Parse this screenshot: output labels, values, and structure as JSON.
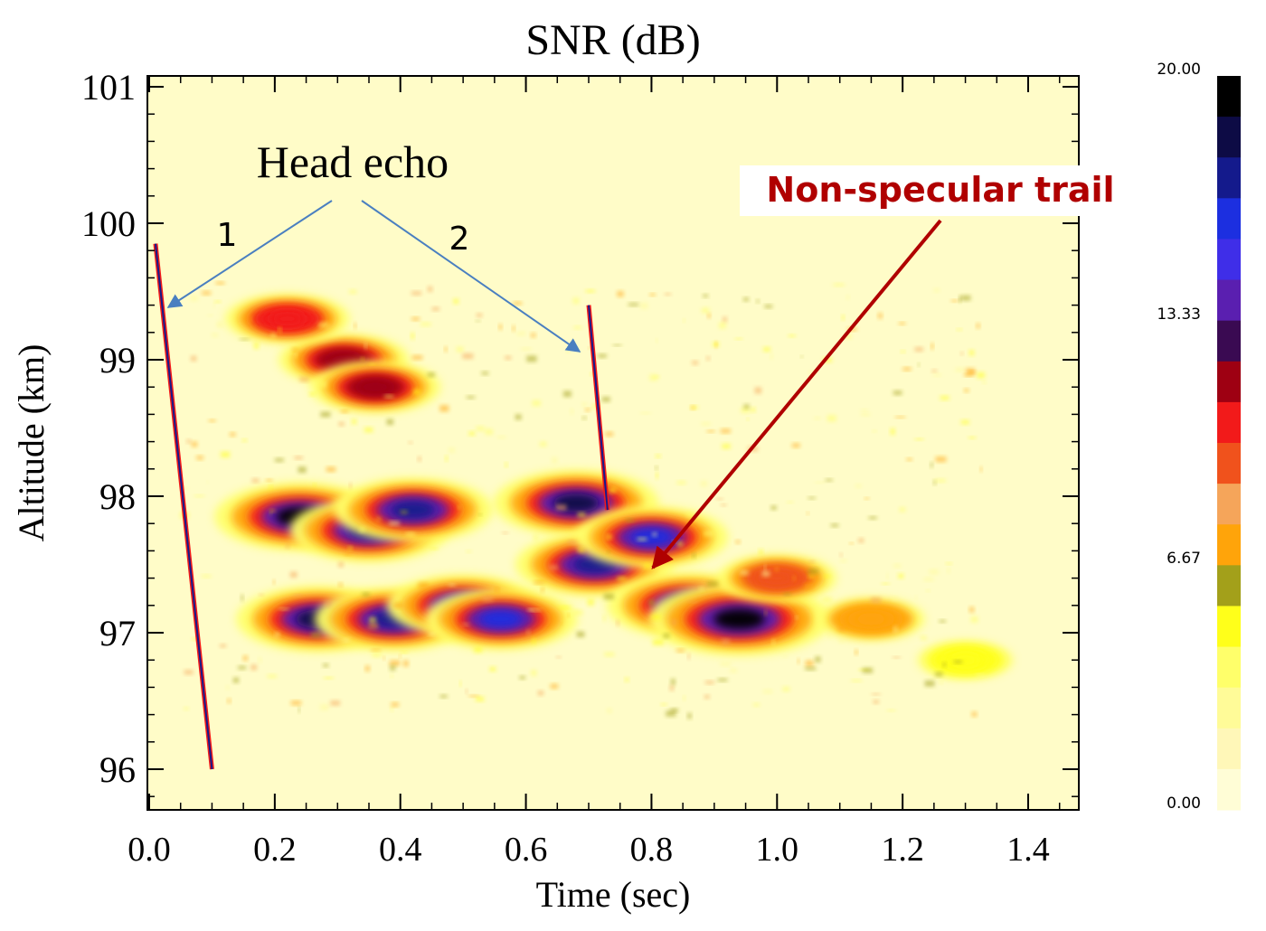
{
  "chart_data": {
    "type": "heatmap",
    "title": "SNR (dB)",
    "xlabel": "Time (sec)",
    "ylabel": "Altitude (km)",
    "xlim": [
      0.0,
      1.5
    ],
    "ylim": [
      95.7,
      101.1
    ],
    "xticks": [
      "0.0",
      "0.2",
      "0.4",
      "0.6",
      "0.8",
      "1.0",
      "1.2",
      "1.4"
    ],
    "yticks": [
      "96",
      "97",
      "98",
      "99",
      "100",
      "101"
    ],
    "colorbar": {
      "min": 0.0,
      "max": 20.0,
      "labels": [
        "20.00",
        "13.33",
        "6.67",
        "0.00"
      ],
      "colors": [
        "#000000",
        "#0d0b45",
        "#141a8c",
        "#1c2fe0",
        "#3f2ee8",
        "#5a1fb0",
        "#3a0a52",
        "#9e0012",
        "#f21a1a",
        "#f0521c",
        "#f5a55a",
        "#ffa40a",
        "#a3a01a",
        "#ffff1a",
        "#ffff6a",
        "#fffb98",
        "#fff7b8",
        "#fffdd6"
      ]
    },
    "annotations": [
      {
        "text": "Head echo",
        "color": "#000000"
      },
      {
        "text": "1",
        "color": "#000000"
      },
      {
        "text": "2",
        "color": "#000000"
      },
      {
        "text": "Non-specular trail",
        "color": "#b00000"
      }
    ],
    "head_echoes": [
      {
        "label": "1",
        "x": [
          0.01,
          0.1
        ],
        "y": [
          99.85,
          96.0
        ]
      },
      {
        "label": "2",
        "x": [
          0.7,
          0.73
        ],
        "y": [
          99.4,
          97.9
        ]
      }
    ],
    "blobs": [
      {
        "x": 0.24,
        "y": 97.85,
        "level": 17
      },
      {
        "x": 0.27,
        "y": 97.1,
        "level": 16
      },
      {
        "x": 0.35,
        "y": 97.75,
        "level": 15
      },
      {
        "x": 0.42,
        "y": 97.9,
        "level": 15
      },
      {
        "x": 0.39,
        "y": 97.1,
        "level": 15
      },
      {
        "x": 0.5,
        "y": 97.2,
        "level": 14
      },
      {
        "x": 0.56,
        "y": 97.1,
        "level": 14
      },
      {
        "x": 0.68,
        "y": 97.95,
        "level": 16
      },
      {
        "x": 0.71,
        "y": 97.5,
        "level": 15
      },
      {
        "x": 0.8,
        "y": 97.7,
        "level": 14
      },
      {
        "x": 0.86,
        "y": 97.2,
        "level": 16
      },
      {
        "x": 0.94,
        "y": 97.1,
        "level": 19
      },
      {
        "x": 0.31,
        "y": 99.0,
        "level": 10
      },
      {
        "x": 0.36,
        "y": 98.8,
        "level": 10
      },
      {
        "x": 0.22,
        "y": 99.3,
        "level": 9
      },
      {
        "x": 1.0,
        "y": 97.4,
        "level": 8
      },
      {
        "x": 1.15,
        "y": 97.1,
        "level": 6
      },
      {
        "x": 1.3,
        "y": 96.8,
        "level": 4
      }
    ]
  },
  "labels": {
    "title": "SNR (dB)",
    "xlabel": "Time (sec)",
    "ylabel": "Altitude (km)",
    "head_echo": "Head echo",
    "num1": "1",
    "num2": "2",
    "trail": "Non-specular trail"
  }
}
